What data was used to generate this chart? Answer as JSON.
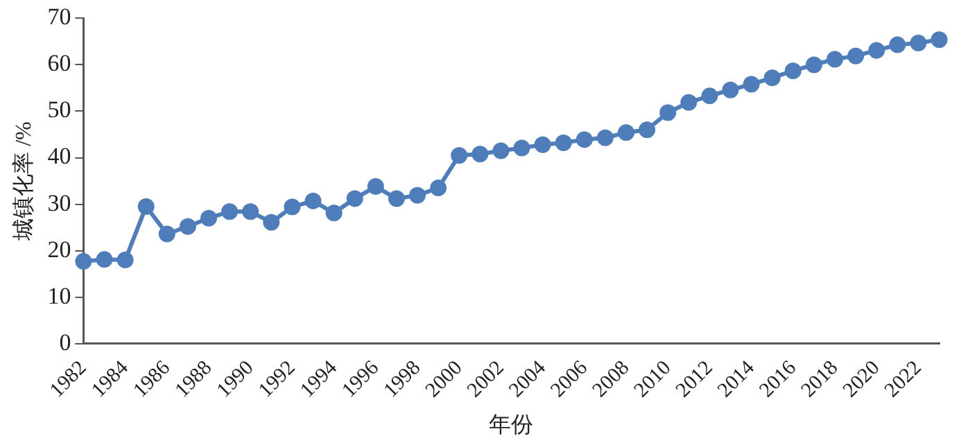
{
  "chart_data": {
    "type": "line",
    "xlabel": "年份",
    "ylabel": "城镇化率 /%",
    "categories": [
      "1982",
      null,
      "1984",
      null,
      "1986",
      null,
      "1988",
      null,
      "1990",
      null,
      "1992",
      null,
      "1994",
      null,
      "1996",
      null,
      "1998",
      null,
      "2000",
      null,
      "2002",
      null,
      "2004",
      null,
      "2006",
      null,
      "2008",
      null,
      "2010",
      null,
      "2012",
      null,
      "2014",
      null,
      "2016",
      null,
      "2018",
      null,
      "2020",
      null,
      "2022",
      null
    ],
    "series": [
      {
        "color": "#4f7dba",
        "values": [
          17.7,
          18.1,
          18.0,
          29.5,
          23.6,
          25.2,
          27.0,
          28.4,
          28.4,
          26.1,
          29.4,
          30.7,
          28.1,
          31.2,
          33.8,
          31.2,
          31.9,
          33.5,
          40.5,
          40.8,
          41.5,
          42.1,
          42.8,
          43.2,
          43.9,
          44.3,
          45.4,
          46.0,
          49.7,
          51.9,
          53.3,
          54.6,
          55.8,
          57.2,
          58.7,
          60.0,
          61.2,
          61.9,
          63.1,
          64.3,
          64.7,
          65.4
        ]
      }
    ],
    "ylim": [
      0,
      70
    ],
    "yticks": [
      0,
      10,
      20,
      30,
      40,
      50,
      60,
      70
    ],
    "grid": false,
    "legend": false,
    "marker": "circle",
    "line_style": "solid"
  }
}
